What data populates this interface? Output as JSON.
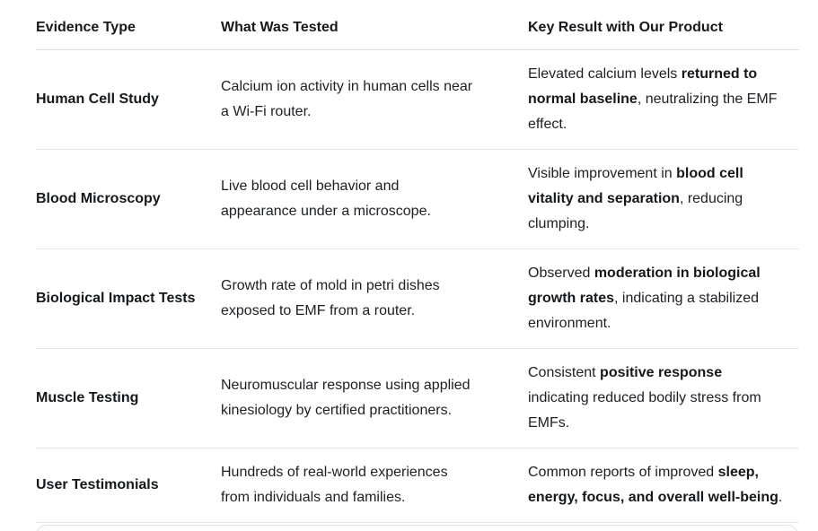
{
  "colors": {
    "background": "#ffffff",
    "text": "#1c1f23",
    "heading_text": "#17191c",
    "divider": "#e4e6e8",
    "header_divider": "#dcdee0"
  },
  "table": {
    "headers": [
      "Evidence Type",
      "What Was Tested",
      "Key Result with Our Product"
    ],
    "rows": [
      {
        "evidence_type": "Human Cell Study",
        "what_was_tested": "Calcium ion activity in human cells near a Wi-Fi router.",
        "key_result": [
          {
            "text": "Elevated calcium levels ",
            "bold": false
          },
          {
            "text": "returned to normal baseline",
            "bold": true
          },
          {
            "text": ", neutralizing the EMF effect.",
            "bold": false
          }
        ]
      },
      {
        "evidence_type": "Blood Microscopy",
        "what_was_tested": "Live blood cell behavior and appearance under a microscope.",
        "key_result": [
          {
            "text": "Visible improvement in ",
            "bold": false
          },
          {
            "text": "blood cell vitality and separation",
            "bold": true
          },
          {
            "text": ", reducing clumping.",
            "bold": false
          }
        ]
      },
      {
        "evidence_type": "Biological Impact Tests",
        "what_was_tested": "Growth rate of mold in petri dishes exposed to EMF from a router.",
        "key_result": [
          {
            "text": "Observed ",
            "bold": false
          },
          {
            "text": "moderation in biological growth rates",
            "bold": true
          },
          {
            "text": ", indicating a stabilized environment.",
            "bold": false
          }
        ]
      },
      {
        "evidence_type": "Muscle Testing",
        "what_was_tested": "Neuromuscular response using applied kinesiology by certified practitioners.",
        "key_result": [
          {
            "text": "Consistent ",
            "bold": false
          },
          {
            "text": "positive response",
            "bold": true
          },
          {
            "text": " indicating reduced bodily stress from EMFs.",
            "bold": false
          }
        ]
      },
      {
        "evidence_type": "User Testimonials",
        "what_was_tested": "Hundreds of real-world experiences from individuals and families.",
        "key_result": [
          {
            "text": "Common reports of improved ",
            "bold": false
          },
          {
            "text": "sleep, energy, focus, and overall well-being",
            "bold": true
          },
          {
            "text": ".",
            "bold": false
          }
        ]
      }
    ]
  }
}
